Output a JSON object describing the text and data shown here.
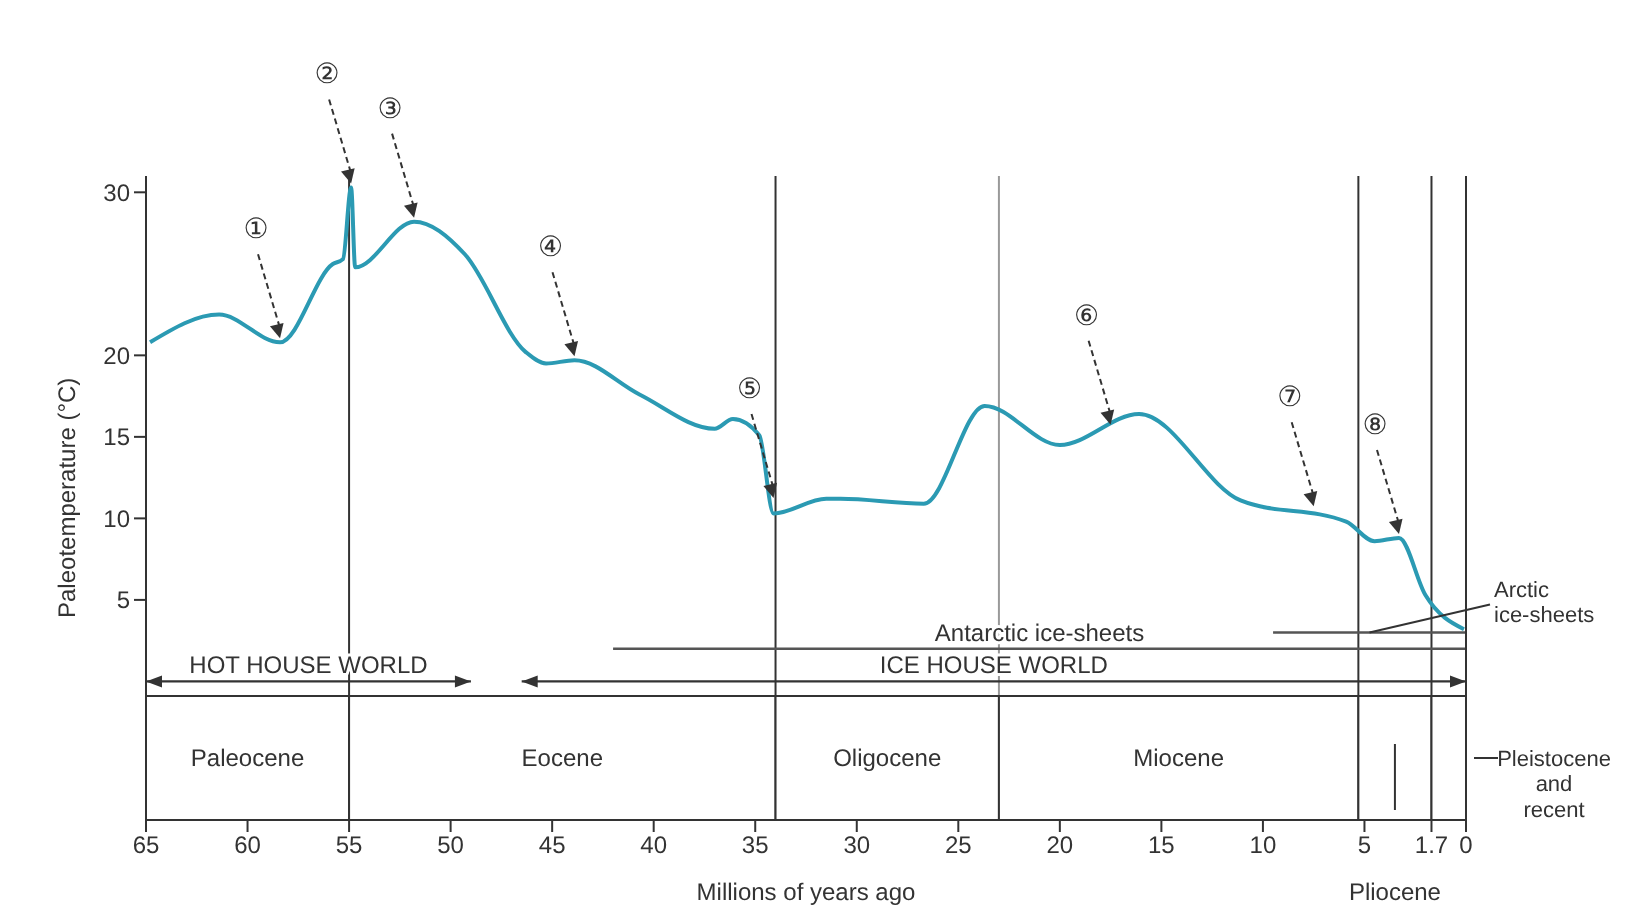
{
  "chart_data": {
    "type": "line",
    "xlabel": "Millions of years ago",
    "ylabel": "Paleotemperature (°C)",
    "x": [
      64.8,
      61.4,
      58.4,
      55.8,
      55.3,
      54.9,
      54.7,
      51.8,
      49.3,
      46.3,
      45.3,
      43.9,
      40.7,
      37.0,
      36.1,
      34.8,
      34.1,
      31.5,
      30.8,
      26.7,
      23.7,
      20.0,
      16.1,
      11.1,
      5.9,
      4.5,
      3.3,
      2.0,
      0.1
    ],
    "series": [
      {
        "color": "#2b9ab3",
        "values": [
          20.8,
          22.5,
          20.8,
          25.6,
          25.9,
          30.3,
          25.4,
          28.2,
          26.2,
          20.2,
          19.5,
          19.7,
          17.6,
          15.5,
          16.1,
          15.1,
          10.3,
          11.2,
          11.2,
          10.9,
          16.9,
          14.5,
          16.4,
          11.1,
          9.8,
          8.6,
          8.8,
          5.3,
          3.2
        ]
      },
      {
        "name": "HOT HOUSE WORLD",
        "color": "#333333",
        "x": [
          65,
          49
        ],
        "values": [
          0,
          0
        ]
      },
      {
        "name": "ICE HOUSE WORLD",
        "color": "#333333",
        "x": [
          46.5,
          0
        ],
        "values": [
          0,
          0
        ]
      },
      {
        "name": "Antarctic ice-sheets",
        "color": "#555555",
        "x": [
          42,
          0
        ],
        "values": [
          2,
          2
        ]
      },
      {
        "name": "Arctic ice-sheets",
        "color": "#555555",
        "x": [
          9.5,
          0
        ],
        "values": [
          3,
          3
        ]
      }
    ],
    "xlim": [
      65,
      0
    ],
    "xticks": [
      65,
      60,
      55,
      50,
      45,
      40,
      35,
      30,
      25,
      20,
      15,
      10,
      5,
      1.7,
      0
    ],
    "ylim": [
      -8.5,
      31
    ],
    "yticks": [
      5,
      10,
      15,
      20,
      30
    ],
    "ref_lines": [
      {
        "axis": "x",
        "value": 55,
        "color": "#333333"
      },
      {
        "axis": "x",
        "value": 34,
        "color": "#333333"
      },
      {
        "axis": "x",
        "value": 23,
        "color": "#999999"
      },
      {
        "axis": "x",
        "value": 5.3,
        "color": "#333333"
      },
      {
        "axis": "x",
        "value": 1.7,
        "color": "#333333"
      }
    ],
    "bands": [
      {
        "axis": "x",
        "from": 65,
        "to": 55,
        "label": "Paleocene",
        "color": "#ffffff"
      },
      {
        "axis": "x",
        "from": 55,
        "to": 34,
        "label": "Eocene",
        "color": "#ffffff"
      },
      {
        "axis": "x",
        "from": 34,
        "to": 23,
        "label": "Oligocene",
        "color": "#ffffff"
      },
      {
        "axis": "x",
        "from": 23,
        "to": 5.3,
        "label": "Miocene",
        "color": "#ffffff"
      },
      {
        "axis": "x",
        "from": 5.3,
        "to": 1.7,
        "label": "Pliocene",
        "color": "#ffffff"
      },
      {
        "axis": "x",
        "from": 1.7,
        "to": 0,
        "label": "Pleistocene and recent",
        "color": "#ffffff"
      }
    ],
    "annotations": [
      {
        "text": "①",
        "x": 58.4,
        "y": 20.8
      },
      {
        "text": "②",
        "x": 54.9,
        "y": 30.3
      },
      {
        "text": "③",
        "x": 51.8,
        "y": 28.2
      },
      {
        "text": "④",
        "x": 43.9,
        "y": 19.7
      },
      {
        "text": "⑤",
        "x": 34.1,
        "y": 11.0
      },
      {
        "text": "⑥",
        "x": 17.5,
        "y": 15.5
      },
      {
        "text": "⑦",
        "x": 7.5,
        "y": 10.5
      },
      {
        "text": "⑧",
        "x": 3.3,
        "y": 8.8
      }
    ]
  }
}
